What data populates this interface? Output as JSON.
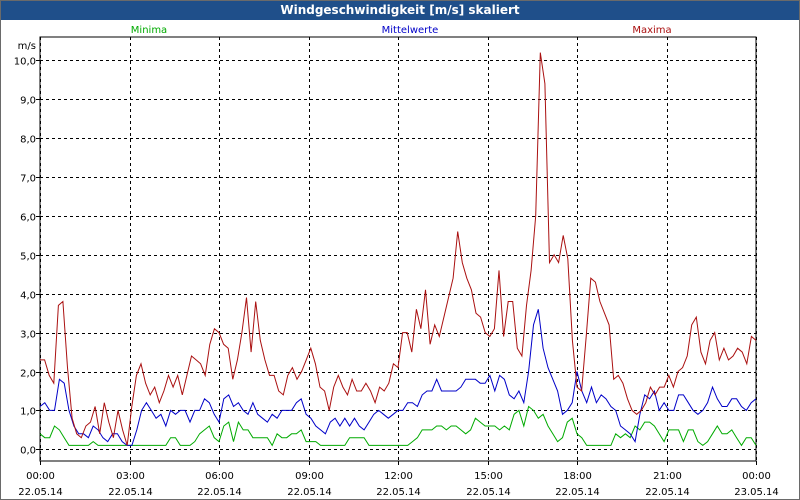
{
  "window": {
    "title": "Windgeschwindigkeit [m/s] skaliert"
  },
  "colors": {
    "min": "#00aa00",
    "mean": "#0000c8",
    "max": "#aa1010",
    "grid": "#000000",
    "titlebar": "#1f4f8a"
  },
  "chart_data": {
    "type": "line",
    "title": "Windgeschwindigkeit [m/s] skaliert",
    "ylabel": "m/s",
    "xlabel": "",
    "ylim": [
      -0.3,
      10.6
    ],
    "yticks": [
      0,
      1,
      2,
      3,
      4,
      5,
      6,
      7,
      8,
      9,
      10
    ],
    "ytick_labels": [
      "0,0",
      "1,0",
      "2,0",
      "3,0",
      "4,0",
      "5,0",
      "6,0",
      "7,0",
      "8,0",
      "9,0",
      "10,0"
    ],
    "xlim": [
      0,
      24
    ],
    "xticks": [
      0,
      3,
      6,
      9,
      12,
      15,
      18,
      21,
      24
    ],
    "xtick_labels": [
      [
        "00:00",
        "22.05.14"
      ],
      [
        "03:00",
        "22.05.14"
      ],
      [
        "06:00",
        "22.05.14"
      ],
      [
        "09:00",
        "22.05.14"
      ],
      [
        "12:00",
        "22.05.14"
      ],
      [
        "15:00",
        "22.05.14"
      ],
      [
        "18:00",
        "22.05.14"
      ],
      [
        "21:00",
        "22.05.14"
      ],
      [
        "00:00",
        "23.05.14"
      ]
    ],
    "grid": true,
    "legend": "top",
    "x_step_hours": 0.1667,
    "series": [
      {
        "name": "Minima",
        "color": "#00aa00",
        "values": [
          0.4,
          0.3,
          0.3,
          0.6,
          0.5,
          0.3,
          0.1,
          0.1,
          0.1,
          0.1,
          0.1,
          0.2,
          0.1,
          0.1,
          0.1,
          0.1,
          0.1,
          0.1,
          0.1,
          0.1,
          0.1,
          0.1,
          0.1,
          0.1,
          0.1,
          0.1,
          0.1,
          0.3,
          0.3,
          0.1,
          0.1,
          0.1,
          0.2,
          0.4,
          0.5,
          0.6,
          0.3,
          0.2,
          0.6,
          0.7,
          0.2,
          0.7,
          0.5,
          0.5,
          0.3,
          0.3,
          0.3,
          0.3,
          0.1,
          0.4,
          0.3,
          0.3,
          0.4,
          0.4,
          0.5,
          0.2,
          0.2,
          0.2,
          0.1,
          0.1,
          0.1,
          0.1,
          0.1,
          0.1,
          0.3,
          0.3,
          0.3,
          0.3,
          0.1,
          0.1,
          0.1,
          0.1,
          0.1,
          0.1,
          0.1,
          0.1,
          0.1,
          0.2,
          0.3,
          0.5,
          0.5,
          0.5,
          0.6,
          0.6,
          0.5,
          0.6,
          0.6,
          0.5,
          0.4,
          0.5,
          0.8,
          0.7,
          0.6,
          0.6,
          0.6,
          0.5,
          0.6,
          0.5,
          0.9,
          1.0,
          0.6,
          1.1,
          1.0,
          0.8,
          0.9,
          0.6,
          0.4,
          0.2,
          0.3,
          0.7,
          0.8,
          0.4,
          0.3,
          0.1,
          0.1,
          0.1,
          0.1,
          0.1,
          0.1,
          0.4,
          0.3,
          0.4,
          0.3,
          0.6,
          0.5,
          0.7,
          0.7,
          0.6,
          0.4,
          0.2,
          0.5,
          0.5,
          0.5,
          0.2,
          0.5,
          0.5,
          0.2,
          0.1,
          0.2,
          0.4,
          0.6,
          0.4,
          0.4,
          0.5,
          0.3,
          0.1,
          0.3,
          0.3,
          0.1
        ]
      },
      {
        "name": "Mittelwerte",
        "color": "#0000c8",
        "values": [
          1.1,
          1.2,
          1.0,
          1.0,
          1.8,
          1.7,
          1.0,
          0.6,
          0.4,
          0.4,
          0.3,
          0.6,
          0.5,
          0.3,
          0.2,
          0.4,
          0.4,
          0.2,
          0.1,
          0.1,
          0.5,
          1.0,
          1.2,
          1.0,
          0.8,
          0.9,
          0.6,
          1.0,
          0.9,
          1.0,
          1.0,
          0.7,
          1.0,
          1.0,
          1.3,
          1.2,
          0.9,
          0.7,
          1.3,
          1.4,
          1.1,
          1.2,
          1.0,
          0.9,
          1.2,
          0.9,
          0.8,
          0.7,
          0.9,
          0.8,
          1.0,
          1.0,
          1.0,
          1.2,
          1.3,
          0.9,
          0.8,
          0.6,
          0.5,
          0.4,
          0.7,
          0.8,
          0.6,
          0.8,
          0.6,
          0.8,
          0.6,
          0.5,
          0.7,
          0.9,
          1.0,
          0.9,
          0.8,
          0.9,
          1.0,
          1.0,
          1.2,
          1.2,
          1.1,
          1.4,
          1.5,
          1.5,
          1.8,
          1.5,
          1.5,
          1.5,
          1.5,
          1.6,
          1.8,
          1.8,
          1.8,
          1.7,
          1.7,
          1.9,
          1.5,
          1.9,
          1.8,
          1.4,
          1.3,
          1.5,
          1.2,
          2.0,
          3.2,
          3.6,
          2.6,
          2.1,
          1.8,
          1.5,
          0.9,
          1.0,
          1.2,
          2.0,
          1.5,
          1.2,
          1.6,
          1.2,
          1.4,
          1.3,
          1.1,
          1.0,
          0.6,
          0.5,
          0.4,
          0.2,
          0.9,
          1.4,
          1.3,
          1.5,
          1.0,
          1.2,
          1.0,
          1.0,
          1.4,
          1.4,
          1.2,
          1.0,
          0.9,
          1.0,
          1.2,
          1.6,
          1.3,
          1.1,
          1.1,
          1.3,
          1.3,
          1.1,
          1.0,
          1.2,
          1.3
        ]
      },
      {
        "name": "Maxima",
        "color": "#aa1010",
        "values": [
          2.3,
          2.3,
          1.9,
          1.7,
          3.7,
          3.8,
          2.1,
          0.8,
          0.4,
          0.3,
          0.6,
          0.7,
          1.1,
          0.4,
          1.2,
          0.7,
          0.3,
          1.0,
          0.5,
          0.1,
          1.1,
          1.9,
          2.2,
          1.7,
          1.4,
          1.6,
          1.2,
          1.5,
          1.9,
          1.6,
          1.9,
          1.4,
          1.9,
          2.4,
          2.3,
          2.2,
          1.9,
          2.7,
          3.1,
          3.0,
          2.7,
          2.6,
          1.8,
          2.3,
          3.0,
          3.9,
          2.5,
          3.8,
          2.8,
          2.3,
          1.9,
          1.9,
          1.5,
          1.4,
          1.9,
          2.1,
          1.8,
          2.0,
          2.3,
          2.6,
          2.2,
          1.6,
          1.5,
          1.0,
          1.6,
          1.9,
          1.6,
          1.4,
          1.8,
          1.5,
          1.5,
          1.7,
          1.5,
          1.2,
          1.6,
          1.5,
          1.7,
          2.2,
          2.1,
          3.0,
          3.0,
          2.5,
          3.6,
          3.1,
          4.1,
          2.7,
          3.2,
          2.9,
          3.4,
          3.9,
          4.4,
          5.6,
          4.8,
          4.4,
          4.1,
          3.5,
          3.4,
          3.0,
          2.9,
          3.1,
          4.6,
          2.9,
          3.8,
          3.8,
          2.6,
          2.4,
          3.7,
          4.6,
          6.0,
          10.2,
          9.4,
          4.8,
          5.0,
          4.8,
          5.5,
          4.9,
          2.8,
          1.6,
          1.5,
          2.9,
          4.4,
          4.3,
          3.8,
          3.5,
          3.2,
          1.8,
          1.9,
          1.7,
          1.3,
          1.0,
          0.9,
          1.0,
          1.2,
          1.6,
          1.4,
          1.6,
          1.6,
          1.9,
          1.6,
          2.0,
          2.1,
          2.4,
          3.2,
          3.4,
          2.5,
          2.2,
          2.8,
          3.0,
          2.3,
          2.6,
          2.3,
          2.4,
          2.6,
          2.5,
          2.2,
          2.9,
          2.8
        ]
      }
    ]
  }
}
